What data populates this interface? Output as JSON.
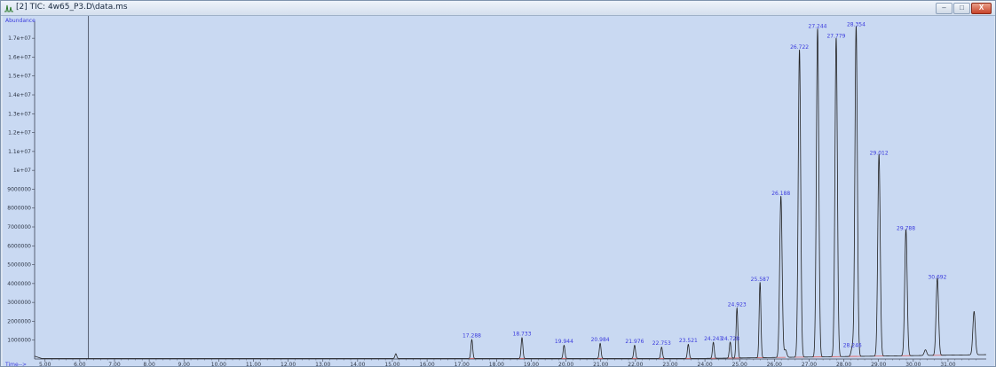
{
  "window": {
    "title": "[2] TIC: 4w65_P3.D\\data.ms",
    "minimize_label": "–",
    "maximize_label": "□",
    "close_label": "X"
  },
  "chart_data": {
    "type": "line",
    "ylabel": "Abundance",
    "xlabel": "Time-->",
    "xlim": [
      4.7,
      32.1
    ],
    "ylim": [
      0,
      17900000
    ],
    "x_ticks": [
      5.0,
      6.0,
      7.0,
      8.0,
      9.0,
      10.0,
      11.0,
      12.0,
      13.0,
      14.0,
      15.0,
      16.0,
      17.0,
      18.0,
      19.0,
      20.0,
      21.0,
      22.0,
      23.0,
      24.0,
      25.0,
      26.0,
      27.0,
      28.0,
      29.0,
      30.0,
      31.0
    ],
    "x_tick_labels": [
      "5.00",
      "6.00",
      "7.00",
      "8.00",
      "9.00",
      "10.00",
      "11.00",
      "12.00",
      "13.00",
      "14.00",
      "15.00",
      "16.00",
      "17.00",
      "18.00",
      "19.00",
      "20.00",
      "21.00",
      "22.00",
      "23.00",
      "24.00",
      "25.00",
      "26.00",
      "27.00",
      "28.00",
      "29.00",
      "30.00",
      "31.00"
    ],
    "y_ticks": [
      1000000,
      2000000,
      3000000,
      4000000,
      5000000,
      6000000,
      7000000,
      8000000,
      9000000,
      10000000,
      11000000,
      12000000,
      13000000,
      14000000,
      15000000,
      16000000,
      17000000
    ],
    "y_tick_labels": [
      "1000000",
      "2000000",
      "3000000",
      "4000000",
      "5000000",
      "6000000",
      "7000000",
      "8000000",
      "9000000",
      "1e+07",
      "1.1e+07",
      "1.2e+07",
      "1.3e+07",
      "1.4e+07",
      "1.5e+07",
      "1.6e+07",
      "1.7e+07"
    ],
    "cursor_x": 6.25,
    "labeled_peaks": [
      {
        "rt": 17.288,
        "label": "17.288",
        "abundance": 1000000
      },
      {
        "rt": 18.733,
        "label": "18.733",
        "abundance": 1100000
      },
      {
        "rt": 19.944,
        "label": "19.944",
        "abundance": 700000
      },
      {
        "rt": 20.984,
        "label": "20.984",
        "abundance": 800000
      },
      {
        "rt": 21.976,
        "label": "21.976",
        "abundance": 700000
      },
      {
        "rt": 22.753,
        "label": "22.753",
        "abundance": 600000
      },
      {
        "rt": 23.521,
        "label": "23.521",
        "abundance": 750000
      },
      {
        "rt": 24.243,
        "label": "24.243",
        "abundance": 850000
      },
      {
        "rt": 24.728,
        "label": "24.728",
        "abundance": 850000
      },
      {
        "rt": 24.923,
        "label": "24.923",
        "abundance": 2650000
      },
      {
        "rt": 25.587,
        "label": "25.587",
        "abundance": 4000000
      },
      {
        "rt": 26.188,
        "label": "26.188",
        "abundance": 8550000
      },
      {
        "rt": 26.722,
        "label": "26.722",
        "abundance": 16300000
      },
      {
        "rt": 27.244,
        "label": "27.244",
        "abundance": 17400000
      },
      {
        "rt": 27.779,
        "label": "27.779",
        "abundance": 16900000
      },
      {
        "rt": 28.246,
        "label": "28.246",
        "abundance": 500000
      },
      {
        "rt": 28.354,
        "label": "28.354",
        "abundance": 17500000
      },
      {
        "rt": 29.012,
        "label": "29.012",
        "abundance": 10700000
      },
      {
        "rt": 29.788,
        "label": "29.788",
        "abundance": 6700000
      },
      {
        "rt": 30.692,
        "label": "30.692",
        "abundance": 4100000
      }
    ],
    "unlabeled_peaks": [
      {
        "rt": 15.1,
        "abundance": 250000
      },
      {
        "rt": 26.32,
        "abundance": 400000
      },
      {
        "rt": 30.35,
        "abundance": 300000
      },
      {
        "rt": 31.75,
        "abundance": 2300000
      }
    ],
    "colors": {
      "background": "#c9d9f2",
      "trace": "#222222",
      "integration": "#e06060",
      "labels": "#3b3bdd"
    }
  }
}
